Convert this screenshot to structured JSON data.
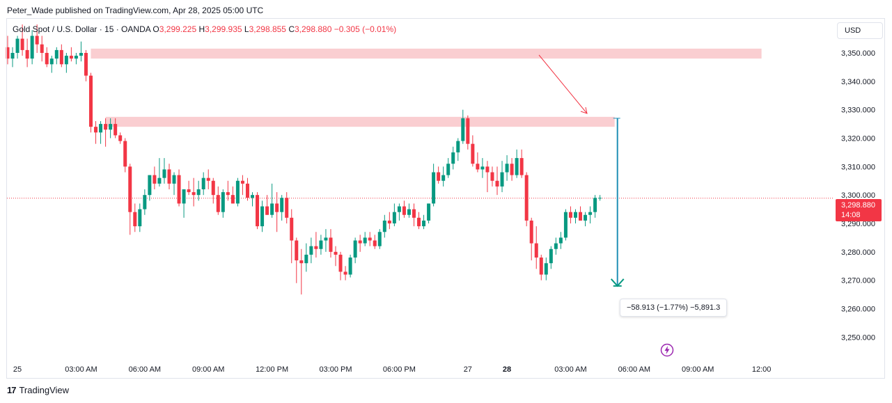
{
  "published": "Peter_Wade published on TradingView.com, Apr 28, 2025 05:00 UTC",
  "legend": {
    "symbol": "Gold Spot / U.S. Dollar · 15 · OANDA",
    "o_label": "O",
    "o_value": "3,299.225",
    "h_label": "H",
    "h_value": "3,299.935",
    "l_label": "L",
    "l_value": "3,298.855",
    "c_label": "C",
    "c_value": "3,298.880",
    "change": "−0.305 (−0.01%)"
  },
  "currency_button": "USD",
  "price_tag": {
    "price": "3,298.880",
    "countdown": "14:08"
  },
  "measure_label": "−58.913 (−1.77%) −5,891.3",
  "brand": "TradingView",
  "colors": {
    "up": "#089981",
    "down": "#f23645",
    "zone": "#f9c6c9",
    "arrow": "#f23645",
    "measure": "#1f8fb5"
  },
  "chart_data": {
    "type": "candlestick",
    "symbol": "XAUUSD",
    "interval": "15",
    "y_ticks": [
      "3,250.000",
      "3,260.000",
      "3,270.000",
      "3,280.000",
      "3,290.000",
      "3,300.000",
      "3,310.000",
      "3,320.000",
      "3,330.000",
      "3,340.000",
      "3,350.000"
    ],
    "y_tick_values": [
      3250,
      3260,
      3270,
      3280,
      3290,
      3300,
      3310,
      3320,
      3330,
      3340,
      3350
    ],
    "ylim": [
      3242,
      3362
    ],
    "x_ticks": [
      {
        "label": "25",
        "index": 2,
        "bold": false
      },
      {
        "label": "03:00 AM",
        "index": 15,
        "bold": false
      },
      {
        "label": "06:00 AM",
        "index": 28,
        "bold": false
      },
      {
        "label": "09:00 AM",
        "index": 41,
        "bold": false
      },
      {
        "label": "12:00 PM",
        "index": 54,
        "bold": false
      },
      {
        "label": "03:00 PM",
        "index": 67,
        "bold": false
      },
      {
        "label": "06:00 PM",
        "index": 80,
        "bold": false
      },
      {
        "label": "27",
        "index": 94,
        "bold": false
      },
      {
        "label": "28",
        "index": 102,
        "bold": true
      },
      {
        "label": "03:00 AM",
        "index": 115,
        "bold": false
      },
      {
        "label": "06:00 AM",
        "index": 128,
        "bold": false
      },
      {
        "label": "09:00 AM",
        "index": 141,
        "bold": false
      },
      {
        "label": "12:00",
        "index": 154,
        "bold": false
      }
    ],
    "zones": [
      {
        "from": 3348,
        "to": 3351.5,
        "start_index": 17,
        "end_index": 154
      },
      {
        "from": 3324,
        "to": 3327.5,
        "start_index": 20,
        "end_index": 124
      }
    ],
    "last_price": 3298.88,
    "measure": {
      "from": 3327,
      "to": 3268,
      "index": 124,
      "label": "−58.913 (−1.77%) −5,891.3"
    },
    "ohlc": [
      [
        3352,
        3356,
        3346,
        3348
      ],
      [
        3348,
        3352,
        3345,
        3350
      ],
      [
        3350,
        3356,
        3348,
        3355
      ],
      [
        3355,
        3360,
        3349,
        3351
      ],
      [
        3351,
        3355,
        3345,
        3348
      ],
      [
        3348,
        3358,
        3346,
        3356
      ],
      [
        3356,
        3360,
        3350,
        3353
      ],
      [
        3353,
        3356,
        3347,
        3350
      ],
      [
        3350,
        3352,
        3345,
        3346
      ],
      [
        3346,
        3349,
        3343,
        3348
      ],
      [
        3348,
        3352,
        3346,
        3351
      ],
      [
        3351,
        3353,
        3345,
        3346
      ],
      [
        3346,
        3350,
        3343,
        3349
      ],
      [
        3349,
        3352,
        3347,
        3348
      ],
      [
        3348,
        3350,
        3346,
        3349
      ],
      [
        3349,
        3354,
        3347,
        3350
      ],
      [
        3350,
        3351,
        3340,
        3342
      ],
      [
        3342,
        3343,
        3322,
        3324
      ],
      [
        3324,
        3326,
        3318,
        3322
      ],
      [
        3322,
        3326,
        3318,
        3325
      ],
      [
        3325,
        3327,
        3317,
        3323
      ],
      [
        3323,
        3327,
        3320,
        3325
      ],
      [
        3325,
        3327,
        3320,
        3321
      ],
      [
        3321,
        3322,
        3318,
        3319
      ],
      [
        3319,
        3320,
        3308,
        3310
      ],
      [
        3310,
        3311,
        3286,
        3294
      ],
      [
        3294,
        3297,
        3287,
        3289
      ],
      [
        3289,
        3297,
        3287,
        3295
      ],
      [
        3295,
        3302,
        3293,
        3300
      ],
      [
        3300,
        3307,
        3298,
        3307
      ],
      [
        3307,
        3310,
        3302,
        3304
      ],
      [
        3304,
        3313,
        3303,
        3306
      ],
      [
        3306,
        3313,
        3304,
        3309
      ],
      [
        3309,
        3311,
        3302,
        3304
      ],
      [
        3304,
        3308,
        3300,
        3307
      ],
      [
        3307,
        3309,
        3296,
        3297
      ],
      [
        3297,
        3301,
        3292,
        3302
      ],
      [
        3302,
        3305,
        3300,
        3301
      ],
      [
        3301,
        3306,
        3296,
        3300
      ],
      [
        3300,
        3305,
        3298,
        3302
      ],
      [
        3302,
        3308,
        3300,
        3306
      ],
      [
        3306,
        3309,
        3302,
        3305
      ],
      [
        3305,
        3306,
        3297,
        3300
      ],
      [
        3300,
        3303,
        3293,
        3294
      ],
      [
        3294,
        3302,
        3292,
        3301
      ],
      [
        3301,
        3305,
        3298,
        3300
      ],
      [
        3300,
        3303,
        3297,
        3297
      ],
      [
        3297,
        3306,
        3296,
        3305
      ],
      [
        3305,
        3307,
        3300,
        3304
      ],
      [
        3304,
        3306,
        3298,
        3299
      ],
      [
        3299,
        3301,
        3296,
        3300
      ],
      [
        3300,
        3301,
        3288,
        3289
      ],
      [
        3289,
        3298,
        3287,
        3296
      ],
      [
        3296,
        3300,
        3293,
        3293
      ],
      [
        3293,
        3304,
        3292,
        3297
      ],
      [
        3297,
        3301,
        3287,
        3294
      ],
      [
        3294,
        3300,
        3291,
        3299
      ],
      [
        3299,
        3301,
        3290,
        3292
      ],
      [
        3292,
        3295,
        3276,
        3284
      ],
      [
        3284,
        3285,
        3269,
        3277
      ],
      [
        3277,
        3281,
        3265,
        3276
      ],
      [
        3276,
        3283,
        3273,
        3279
      ],
      [
        3279,
        3285,
        3276,
        3282
      ],
      [
        3282,
        3287,
        3278,
        3281
      ],
      [
        3281,
        3286,
        3279,
        3284
      ],
      [
        3284,
        3288,
        3280,
        3285
      ],
      [
        3285,
        3288,
        3278,
        3280
      ],
      [
        3280,
        3282,
        3275,
        3279
      ],
      [
        3279,
        3280,
        3270,
        3273
      ],
      [
        3273,
        3275,
        3270,
        3272
      ],
      [
        3272,
        3279,
        3271,
        3278
      ],
      [
        3278,
        3285,
        3276,
        3284
      ],
      [
        3284,
        3286,
        3280,
        3283
      ],
      [
        3283,
        3287,
        3282,
        3285
      ],
      [
        3285,
        3287,
        3282,
        3284
      ],
      [
        3284,
        3286,
        3281,
        3282
      ],
      [
        3282,
        3288,
        3281,
        3287
      ],
      [
        3287,
        3293,
        3285,
        3291
      ],
      [
        3291,
        3294,
        3288,
        3290
      ],
      [
        3290,
        3297,
        3289,
        3294
      ],
      [
        3294,
        3297,
        3291,
        3296
      ],
      [
        3296,
        3298,
        3292,
        3293
      ],
      [
        3293,
        3297,
        3292,
        3295
      ],
      [
        3295,
        3297,
        3289,
        3292
      ],
      [
        3292,
        3294,
        3288,
        3289
      ],
      [
        3289,
        3293,
        3288,
        3291
      ],
      [
        3291,
        3297,
        3290,
        3297
      ],
      [
        3297,
        3311,
        3296,
        3308
      ],
      [
        3308,
        3310,
        3304,
        3305
      ],
      [
        3305,
        3310,
        3303,
        3307
      ],
      [
        3307,
        3313,
        3306,
        3311
      ],
      [
        3311,
        3317,
        3309,
        3315
      ],
      [
        3315,
        3320,
        3312,
        3319
      ],
      [
        3319,
        3330,
        3318,
        3327
      ],
      [
        3327,
        3328,
        3316,
        3318
      ],
      [
        3318,
        3321,
        3310,
        3311
      ],
      [
        3311,
        3315,
        3308,
        3309
      ],
      [
        3309,
        3313,
        3306,
        3310
      ],
      [
        3310,
        3312,
        3301,
        3308
      ],
      [
        3308,
        3310,
        3303,
        3305
      ],
      [
        3305,
        3310,
        3300,
        3303
      ],
      [
        3303,
        3312,
        3301,
        3308
      ],
      [
        3308,
        3314,
        3305,
        3311
      ],
      [
        3311,
        3313,
        3305,
        3307
      ],
      [
        3307,
        3316,
        3306,
        3313
      ],
      [
        3313,
        3316,
        3306,
        3307
      ],
      [
        3307,
        3308,
        3289,
        3291
      ],
      [
        3291,
        3292,
        3277,
        3283
      ],
      [
        3283,
        3289,
        3274,
        3278
      ],
      [
        3278,
        3279,
        3270,
        3272
      ],
      [
        3272,
        3278,
        3270,
        3276
      ],
      [
        3276,
        3282,
        3274,
        3281
      ],
      [
        3281,
        3285,
        3279,
        3283
      ],
      [
        3283,
        3287,
        3281,
        3285
      ],
      [
        3285,
        3295,
        3284,
        3294
      ],
      [
        3294,
        3296,
        3290,
        3292
      ],
      [
        3292,
        3295,
        3290,
        3294
      ],
      [
        3294,
        3296,
        3291,
        3291
      ],
      [
        3291,
        3294,
        3289,
        3293
      ],
      [
        3293,
        3296,
        3290,
        3294
      ],
      [
        3294,
        3300,
        3292,
        3299
      ],
      [
        3299,
        3300,
        3298,
        3299
      ]
    ]
  }
}
